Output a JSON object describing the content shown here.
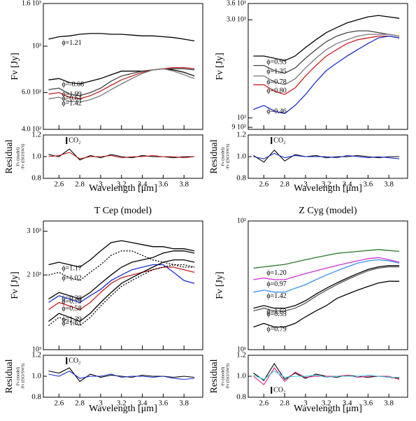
{
  "chart_data": [
    {
      "type": "line",
      "ylog": true,
      "xlabel": "Wavelength [μm]",
      "ylabel": "Fν [Jy]",
      "x": [
        2.5,
        2.6,
        2.7,
        2.8,
        2.9,
        3.0,
        3.1,
        3.2,
        3.3,
        3.4,
        3.5,
        3.6,
        3.7,
        3.8,
        3.9
      ],
      "xlim": [
        2.45,
        3.98
      ],
      "xticks": [
        2.6,
        2.8,
        3,
        3.2,
        3.4,
        3.6,
        3.8
      ],
      "ylim": [
        400,
        1600
      ],
      "yticks": [
        {
          "value": 400,
          "label": "4.0 10²"
        },
        {
          "value": 600,
          "label": "6.0 10²"
        },
        {
          "value": 1000,
          "label": "10³"
        },
        {
          "value": 1600,
          "label": "1.6 10³"
        }
      ],
      "series": [
        {
          "name": "ϕ=1.21",
          "color": "#000000",
          "values": [
            1080,
            1110,
            1120,
            1140,
            1150,
            1150,
            1140,
            1140,
            1130,
            1120,
            1120,
            1110,
            1100,
            1080,
            1060
          ]
        },
        {
          "name": "ϕ=-0.08",
          "color": "#000000",
          "values": [
            690,
            700,
            670,
            660,
            680,
            700,
            730,
            760,
            760,
            760,
            770,
            780,
            770,
            750,
            720
          ]
        },
        {
          "name": "ϕ=1.99",
          "color": "#444444",
          "values": [
            620,
            630,
            590,
            580,
            600,
            630,
            680,
            720,
            740,
            760,
            770,
            780,
            780,
            780,
            770
          ]
        },
        {
          "name": "ϕ=0.64",
          "color": "#c0201e",
          "values": [
            590,
            600,
            570,
            560,
            580,
            610,
            650,
            690,
            720,
            750,
            770,
            780,
            790,
            790,
            780
          ]
        },
        {
          "name": "ϕ=1.42",
          "color": "#777777",
          "values": [
            560,
            570,
            545,
            540,
            555,
            580,
            620,
            660,
            700,
            740,
            770,
            780,
            760,
            730,
            700
          ]
        }
      ],
      "residual": {
        "ylabel": "Residual",
        "sublabel_top": "Fν (model)",
        "sublabel_bottom": "/Fν (ISO/SWS)",
        "annotation": "CO₂",
        "ylim": [
          0.8,
          1.2
        ],
        "yticks": [
          0.8,
          {
            "value": 1,
            "label": "1.0"
          },
          1.2
        ],
        "series": [
          {
            "color": "#000000",
            "values": [
              1.02,
              1.0,
              1.07,
              0.97,
              1.01,
              0.99,
              1.02,
              1.0,
              0.99,
              1.01,
              1.0,
              1.0,
              0.99,
              1.0,
              1.0
            ]
          },
          {
            "color": "#c0201e",
            "values": [
              1.0,
              1.01,
              1.04,
              0.98,
              1.0,
              1.0,
              1.01,
              0.99,
              1.0,
              1.0,
              1.01,
              1.0,
              1.0,
              0.99,
              1.0
            ]
          }
        ]
      }
    },
    {
      "type": "line",
      "ylog": true,
      "xlabel": "Wavelength [μm]",
      "ylabel": "Fν [Jy]",
      "x": [
        2.5,
        2.6,
        2.7,
        2.8,
        2.9,
        3.0,
        3.1,
        3.2,
        3.3,
        3.4,
        3.5,
        3.6,
        3.7,
        3.8,
        3.9
      ],
      "xlim": [
        2.45,
        3.98
      ],
      "xticks": [
        2.6,
        2.8,
        3,
        3.2,
        3.4,
        3.6,
        3.8
      ],
      "ylim": [
        880,
        3600
      ],
      "yticks": [
        {
          "value": 900,
          "label": "9 10²"
        },
        {
          "value": 1000,
          "label": "10³"
        },
        {
          "value": 3000,
          "label": "3.0 10³"
        },
        {
          "value": 3600,
          "label": "3.6 10³"
        }
      ],
      "series": [
        {
          "name": "ϕ=0.93",
          "color": "#000000",
          "values": [
            2000,
            2000,
            1950,
            1900,
            2000,
            2200,
            2400,
            2600,
            2750,
            2900,
            3000,
            3100,
            3150,
            3100,
            3050
          ]
        },
        {
          "name": "ϕ=1.35",
          "color": "#444444",
          "values": [
            1800,
            1800,
            1700,
            1650,
            1750,
            1950,
            2150,
            2350,
            2500,
            2600,
            2650,
            2650,
            2600,
            2550,
            2500
          ]
        },
        {
          "name": "ϕ=0.78",
          "color": "#777777",
          "values": [
            1600,
            1600,
            1500,
            1450,
            1550,
            1750,
            1950,
            2150,
            2300,
            2400,
            2500,
            2550,
            2550,
            2550,
            2500
          ]
        },
        {
          "name": "ϕ=0.80",
          "color": "#d0201e",
          "values": [
            1450,
            1450,
            1350,
            1300,
            1400,
            1600,
            1800,
            2000,
            2150,
            2300,
            2400,
            2450,
            2500,
            2500,
            2450
          ]
        },
        {
          "name": "ϕ=0.46",
          "color": "#1a2fd0",
          "values": [
            1100,
            1150,
            1080,
            1050,
            1150,
            1300,
            1500,
            1700,
            1850,
            2000,
            2150,
            2300,
            2450,
            2500,
            2450
          ]
        }
      ],
      "residual": {
        "ylabel": "Residual",
        "sublabel_top": "Fν (model)",
        "sublabel_bottom": "/Fν (ISO/SWS)",
        "annotation": "CO₂",
        "ylim": [
          0.8,
          1.2
        ],
        "yticks": [
          0.8,
          {
            "value": 1,
            "label": "1.0"
          },
          1.2
        ],
        "series": [
          {
            "color": "#000000",
            "values": [
              1.01,
              0.95,
              1.06,
              0.96,
              1.02,
              1.0,
              1.01,
              0.99,
              1.0,
              1.0,
              1.01,
              1.0,
              0.99,
              1.0,
              1.0
            ]
          },
          {
            "color": "#1a2fd0",
            "values": [
              1.0,
              0.98,
              1.03,
              0.99,
              1.01,
              1.0,
              1.0,
              1.0,
              0.99,
              1.01,
              1.0,
              0.99,
              1.0,
              0.99,
              0.98
            ]
          }
        ]
      }
    },
    {
      "type": "line",
      "ylog": true,
      "title": "T Cep (model)",
      "xlabel": "Wavelength [μm]",
      "ylabel": "Fν [Jy]",
      "x": [
        2.5,
        2.6,
        2.7,
        2.8,
        2.9,
        3.0,
        3.1,
        3.2,
        3.3,
        3.4,
        3.5,
        3.6,
        3.7,
        3.8,
        3.9
      ],
      "xlim": [
        2.45,
        3.98
      ],
      "xticks": [
        2.6,
        2.8,
        3,
        3.2,
        3.4,
        3.6,
        3.8
      ],
      "ylim": [
        1000,
        3300
      ],
      "yticks": [
        {
          "value": 1000,
          "label": "10³"
        },
        {
          "value": 2000,
          "label": "2 10³"
        },
        {
          "value": 3000,
          "label": "3 10³"
        }
      ],
      "series": [
        {
          "name": "ϕ=1.17",
          "color": "#000000",
          "values": [
            2200,
            2250,
            2200,
            2150,
            2300,
            2500,
            2700,
            2750,
            2700,
            2650,
            2600,
            2600,
            2550,
            2550,
            2500
          ]
        },
        {
          "name": "ϕ=1.02",
          "color": "#000000",
          "style": "dotted",
          "values": [
            2000,
            2050,
            1950,
            1900,
            2050,
            2200,
            2400,
            2500,
            2500,
            2400,
            2300,
            2250,
            2200,
            2150,
            2150
          ]
        },
        {
          "name": "ϕ=0.38",
          "color": "#000000",
          "values": [
            1600,
            1700,
            1650,
            1600,
            1700,
            1850,
            2000,
            2150,
            2250,
            2300,
            2350,
            2450,
            2500,
            2500,
            2450
          ]
        },
        {
          "name": "ϕ=0.79",
          "color": "#1a2fd0",
          "values": [
            1550,
            1650,
            1600,
            1550,
            1650,
            1750,
            1900,
            2000,
            2100,
            2150,
            2200,
            2200,
            2050,
            1900,
            1850
          ]
        },
        {
          "name": "ϕ=0.58",
          "color": "#c0201e",
          "values": [
            1450,
            1550,
            1500,
            1450,
            1550,
            1700,
            1850,
            1950,
            2000,
            2050,
            2100,
            2150,
            2150,
            2100,
            2050
          ]
        },
        {
          "name": "ϕ=1.39",
          "color": "#000000",
          "values": [
            1300,
            1400,
            1350,
            1300,
            1400,
            1550,
            1700,
            1850,
            1950,
            2050,
            2150,
            2250,
            2300,
            2300,
            2250
          ]
        },
        {
          "name": "ϕ=1.61",
          "color": "#000000",
          "style": "dotted",
          "values": [
            1250,
            1350,
            1300,
            1250,
            1350,
            1500,
            1650,
            1800,
            1900,
            2000,
            2100,
            2150,
            2200,
            2200,
            2150
          ]
        }
      ],
      "residual": {
        "ylabel": "Residual",
        "sublabel_top": "Fν (model)",
        "sublabel_bottom": "/Fν (ISO/SWS)",
        "annotation": "CO₂",
        "ylim": [
          0.8,
          1.2
        ],
        "yticks": [
          0.8,
          {
            "value": 1,
            "label": "1.0"
          },
          1.2
        ],
        "series": [
          {
            "color": "#000000",
            "values": [
              1.05,
              1.03,
              1.08,
              0.95,
              1.02,
              0.99,
              1.01,
              1.0,
              0.99,
              1.01,
              1.0,
              1.0,
              0.99,
              1.0,
              0.99
            ]
          },
          {
            "color": "#1a2fd0",
            "values": [
              1.02,
              1.0,
              1.05,
              0.98,
              1.0,
              1.0,
              1.02,
              0.99,
              1.0,
              1.0,
              0.99,
              1.0,
              0.98,
              0.97,
              0.98
            ]
          }
        ]
      }
    },
    {
      "type": "line",
      "ylog": true,
      "title": "Z Cyg (model)",
      "xlabel": "Wavelength [μm]",
      "ylabel": "Fν [Jy]",
      "x": [
        2.5,
        2.6,
        2.7,
        2.8,
        2.9,
        3.0,
        3.1,
        3.2,
        3.3,
        3.4,
        3.5,
        3.6,
        3.7,
        3.8,
        3.9
      ],
      "xlim": [
        2.45,
        3.98
      ],
      "xticks": [
        2.6,
        2.8,
        3,
        3.2,
        3.4,
        3.6,
        3.8
      ],
      "ylim": [
        10,
        100
      ],
      "yticks": [
        {
          "value": 10,
          "label": "10¹"
        },
        {
          "value": 100,
          "label": "10²"
        }
      ],
      "series": [
        {
          "name": "ϕ=1.20",
          "color": "#2a7a2a",
          "values": [
            43,
            44,
            45,
            46,
            48,
            50,
            52,
            54,
            56,
            57,
            58,
            59,
            60,
            59,
            58
          ]
        },
        {
          "name": "ϕ=0.97",
          "color": "#d030d0",
          "values": [
            35,
            36,
            35,
            35,
            37,
            39,
            41,
            43,
            45,
            47,
            49,
            51,
            52,
            50,
            48
          ]
        },
        {
          "name": "ϕ=1.42",
          "color": "#3a8ff0",
          "values": [
            28,
            29,
            28,
            28,
            30,
            32,
            35,
            38,
            41,
            44,
            47,
            49,
            50,
            49,
            47
          ]
        },
        {
          "name": "ϕ=1.63",
          "color": "#000000",
          "values": [
            21,
            22,
            21,
            21,
            22,
            24,
            27,
            30,
            33,
            36,
            39,
            42,
            44,
            45,
            45
          ]
        },
        {
          "name": "ϕ=0.55",
          "color": "#555555",
          "values": [
            20,
            21,
            20,
            20,
            21,
            23,
            26,
            29,
            32,
            35,
            38,
            41,
            43,
            44,
            44
          ]
        },
        {
          "name": "ϕ=0.79",
          "color": "#000000",
          "values": [
            15,
            16,
            15,
            15,
            16,
            18,
            20,
            22,
            25,
            27,
            29,
            31,
            33,
            34,
            34
          ]
        }
      ],
      "residual": {
        "ylabel": "Residual",
        "sublabel_top": "Fν (model)",
        "sublabel_bottom": "/Fν (ISO/SWS)",
        "annotation": "CO₂",
        "ylim": [
          0.8,
          1.2
        ],
        "yticks": [
          0.8,
          {
            "value": 1,
            "label": "1.0"
          },
          1.2
        ],
        "series": [
          {
            "color": "#000000",
            "values": [
              1.03,
              0.96,
              1.12,
              0.97,
              1.03,
              0.98,
              1.02,
              1.0,
              0.99,
              1.01,
              1.0,
              0.99,
              1.0,
              0.99,
              0.98
            ]
          },
          {
            "color": "#e0207a",
            "values": [
              1.0,
              0.92,
              1.08,
              0.95,
              1.04,
              0.99,
              1.0,
              1.0,
              1.0,
              1.01,
              0.99,
              1.0,
              1.0,
              1.0,
              0.97
            ]
          },
          {
            "color": "#30c8e0",
            "values": [
              1.01,
              0.97,
              1.05,
              0.99,
              1.0,
              1.0,
              1.01,
              0.99,
              1.0,
              1.0,
              1.0,
              1.01,
              1.0,
              0.99,
              0.99
            ]
          }
        ]
      }
    }
  ]
}
